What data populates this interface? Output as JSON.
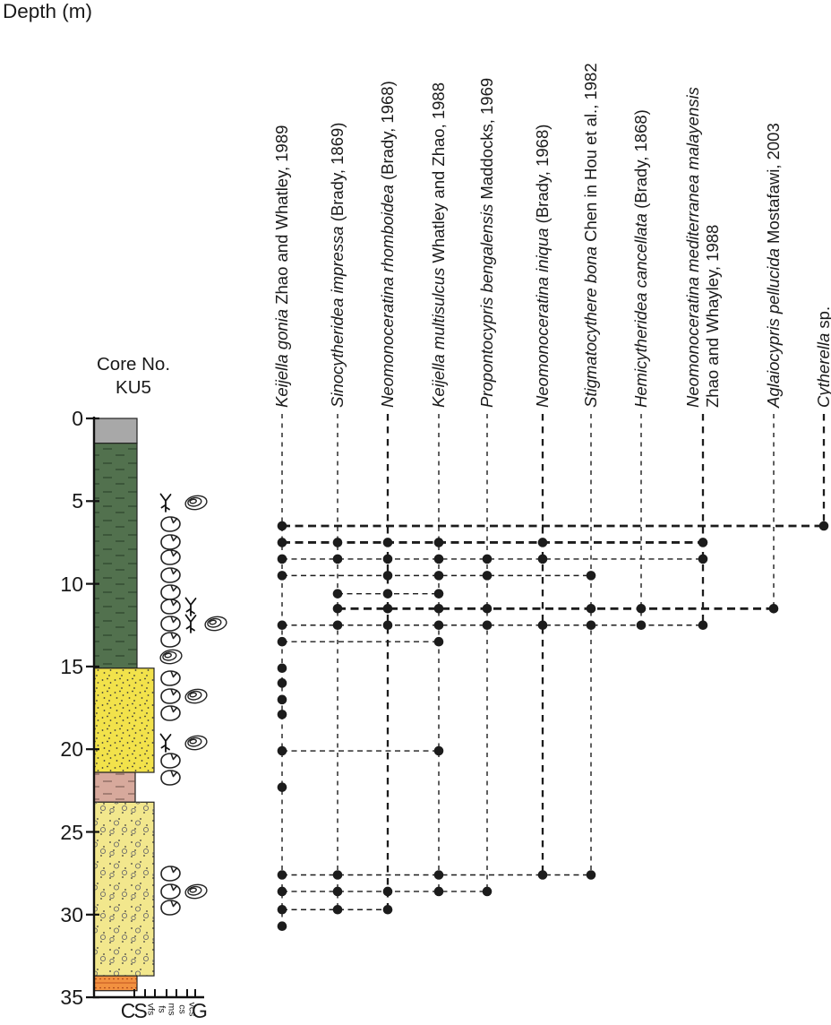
{
  "chart_data": {
    "type": "scatter",
    "description": "Stratigraphic occurrence chart of ostracod species against depth in sediment core KU5, with lithology column, fossil symbols and grain-size scale",
    "yaxis": {
      "title": "Depth (m)",
      "ticks": [
        0,
        5,
        10,
        15,
        20,
        25,
        30,
        35
      ],
      "range": [
        0,
        35
      ],
      "inverted": true,
      "grid": false
    },
    "core": {
      "label": "Core No.",
      "id": "KU5"
    },
    "grain_size_scale": {
      "labels": [
        {
          "text": "C",
          "large": true
        },
        {
          "text": "S",
          "large": true
        },
        {
          "text": "vfs",
          "large": false
        },
        {
          "text": "fs",
          "large": false
        },
        {
          "text": "ms",
          "large": false
        },
        {
          "text": "cs",
          "large": false
        },
        {
          "text": "vcs",
          "large": false
        },
        {
          "text": "G",
          "large": true
        }
      ]
    },
    "species": [
      {
        "name": "Keijella gonia",
        "authority": "Zhao and Whatley, 1989",
        "two_line": false,
        "column_emphasis": "thin"
      },
      {
        "name": "Sinocytheridea impressa",
        "authority": "(Brady, 1869)",
        "two_line": false,
        "column_emphasis": "thin"
      },
      {
        "name": "Neomonoceratina rhomboidea",
        "authority": "(Brady, 1968)",
        "two_line": false,
        "column_emphasis": "bold"
      },
      {
        "name": "Keijella multisulcus",
        "authority": "Whatley and Zhao, 1988",
        "two_line": false,
        "column_emphasis": "thin"
      },
      {
        "name": "Propontocypris bengalensis",
        "authority": "Maddocks, 1969",
        "two_line": false,
        "column_emphasis": "thin"
      },
      {
        "name": "Neomonoceratina iniqua",
        "authority": "(Brady, 1968)",
        "two_line": false,
        "column_emphasis": "bold"
      },
      {
        "name": "Stigmatocythere bona",
        "authority": "Chen in Hou et al., 1982",
        "two_line": false,
        "column_emphasis": "thin"
      },
      {
        "name": "Hemicytheridea cancellata",
        "authority": "(Brady, 1868)",
        "two_line": false,
        "column_emphasis": "thin"
      },
      {
        "name": "Neomonoceratina mediterranea malayensis",
        "authority": "Zhao and Whayley, 1988",
        "two_line": true,
        "column_emphasis": "bold"
      },
      {
        "name": "Aglaiocypris pellucida",
        "authority": "Mostafawi, 2003",
        "two_line": false,
        "column_emphasis": "thin"
      },
      {
        "name": "Cytherella",
        "authority": "sp.",
        "two_line": false,
        "column_emphasis": "bold"
      }
    ],
    "occurrence_rows": [
      {
        "depth_m": 6.5,
        "species": [
          1,
          11
        ],
        "line": "bold"
      },
      {
        "depth_m": 7.5,
        "species": [
          1,
          2,
          3,
          4,
          6,
          9
        ],
        "line": "bold"
      },
      {
        "depth_m": 8.5,
        "species": [
          1,
          2,
          3,
          4,
          5,
          6,
          9
        ],
        "line": "thin"
      },
      {
        "depth_m": 9.5,
        "species": [
          1,
          3,
          4,
          5,
          7
        ],
        "line": "thin"
      },
      {
        "depth_m": 10.6,
        "species": [
          2,
          3,
          4
        ],
        "line": "thin"
      },
      {
        "depth_m": 11.5,
        "species": [
          2,
          3,
          4,
          5,
          7,
          8,
          10
        ],
        "line": "bold"
      },
      {
        "depth_m": 12.5,
        "species": [
          1,
          2,
          3,
          4,
          5,
          6,
          7,
          8,
          9
        ],
        "line": "thin"
      },
      {
        "depth_m": 13.5,
        "species": [
          1,
          4
        ],
        "line": "thin"
      },
      {
        "depth_m": 15.1,
        "species": [
          1
        ],
        "line": "thin"
      },
      {
        "depth_m": 16.0,
        "species": [
          1
        ],
        "line": "thin"
      },
      {
        "depth_m": 17.0,
        "species": [
          1
        ],
        "line": "thin"
      },
      {
        "depth_m": 17.9,
        "species": [
          1
        ],
        "line": "thin"
      },
      {
        "depth_m": 20.1,
        "species": [
          1,
          4
        ],
        "line": "thin"
      },
      {
        "depth_m": 22.3,
        "species": [
          1
        ],
        "line": "thin"
      },
      {
        "depth_m": 27.6,
        "species": [
          1,
          2,
          4,
          6,
          7
        ],
        "line": "thin"
      },
      {
        "depth_m": 28.6,
        "species": [
          1,
          2,
          3,
          4,
          5
        ],
        "line": "thin"
      },
      {
        "depth_m": 29.7,
        "species": [
          1,
          2,
          3
        ],
        "line": "thin"
      },
      {
        "depth_m": 30.7,
        "species": [
          1
        ],
        "line": "thin"
      }
    ],
    "lithology_units": [
      {
        "label": "gray silty cap",
        "top_m": 0,
        "base_m": 1.5,
        "color": "#a8a8a8",
        "texture": "plain"
      },
      {
        "label": "dark green mud",
        "top_m": 1.5,
        "base_m": 15.1,
        "color": "#52714e",
        "texture": "mud-green"
      },
      {
        "label": "yellow sand",
        "top_m": 15.1,
        "base_m": 21.4,
        "color": "#f2e24b",
        "texture": "sand"
      },
      {
        "label": "pink mud",
        "top_m": 21.4,
        "base_m": 23.2,
        "color": "#d7a99c",
        "texture": "mud-pink"
      },
      {
        "label": "pale yellow gravelly sand",
        "top_m": 23.2,
        "base_m": 33.7,
        "color": "#f2e78d",
        "texture": "gravel"
      },
      {
        "label": "orange sand",
        "top_m": 33.7,
        "base_m": 34.6,
        "color": "#f29140",
        "texture": "orange"
      }
    ],
    "fossil_symbols": [
      {
        "depth_m": 5.1,
        "icons": [
          "root",
          "gastropod"
        ]
      },
      {
        "depth_m": 6.4,
        "icons": [
          "shell"
        ]
      },
      {
        "depth_m": 7.5,
        "icons": [
          "shell"
        ]
      },
      {
        "depth_m": 8.4,
        "icons": [
          "shell"
        ]
      },
      {
        "depth_m": 9.5,
        "icons": [
          "shell"
        ]
      },
      {
        "depth_m": 10.5,
        "icons": [
          "shell"
        ]
      },
      {
        "depth_m": 11.4,
        "icons": [
          "shell",
          "root"
        ]
      },
      {
        "depth_m": 12.4,
        "icons": [
          "shell",
          "root",
          "gastropod"
        ]
      },
      {
        "depth_m": 13.4,
        "icons": [
          "shell"
        ]
      },
      {
        "depth_m": 14.4,
        "icons": [
          "gastropod"
        ]
      },
      {
        "depth_m": 15.7,
        "icons": [
          "shell"
        ]
      },
      {
        "depth_m": 16.8,
        "icons": [
          "shell",
          "gastropod"
        ]
      },
      {
        "depth_m": 17.8,
        "icons": [
          "shell"
        ]
      },
      {
        "depth_m": 19.6,
        "icons": [
          "root",
          "gastropod"
        ]
      },
      {
        "depth_m": 20.7,
        "icons": [
          "shell"
        ]
      },
      {
        "depth_m": 21.7,
        "icons": [
          "shell"
        ]
      },
      {
        "depth_m": 27.5,
        "icons": [
          "shell"
        ]
      },
      {
        "depth_m": 28.6,
        "icons": [
          "shell",
          "gastropod"
        ]
      },
      {
        "depth_m": 29.6,
        "icons": [
          "shell"
        ]
      }
    ],
    "colors": {
      "ink": "#1a1a1a",
      "dot": "#1c1c1c"
    }
  }
}
